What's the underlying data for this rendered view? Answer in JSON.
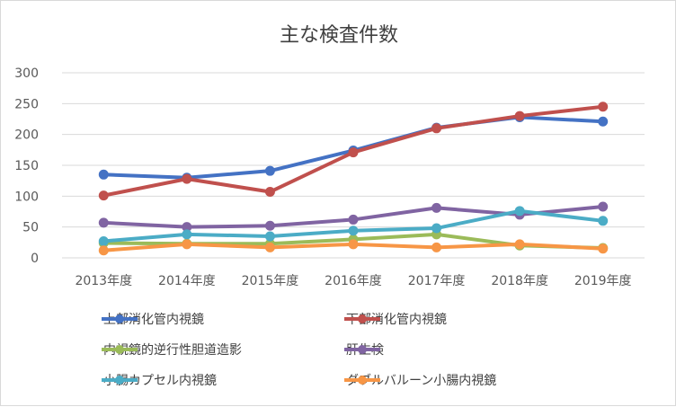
{
  "chart_data": {
    "type": "line",
    "title": "主な検査件数",
    "categories": [
      "2013年度",
      "2014年度",
      "2015年度",
      "2016年度",
      "2017年度",
      "2018年度",
      "2019年度"
    ],
    "ylim": [
      0,
      300
    ],
    "yticks": [
      0,
      50,
      100,
      150,
      200,
      250,
      300
    ],
    "grid": true,
    "legend_position": "bottom",
    "series": [
      {
        "name": "上部消化管内視鏡",
        "color": "#4472c4",
        "values": [
          135,
          130,
          141,
          174,
          211,
          228,
          221
        ]
      },
      {
        "name": "下部消化管内視鏡",
        "color": "#c0504d",
        "values": [
          101,
          128,
          107,
          171,
          210,
          230,
          245
        ]
      },
      {
        "name": "内視鏡的逆行性胆道造影",
        "color": "#9bbb59",
        "values": [
          24,
          23,
          23,
          30,
          38,
          20,
          16
        ]
      },
      {
        "name": "肝生検",
        "color": "#8064a2",
        "values": [
          57,
          50,
          52,
          62,
          81,
          70,
          83
        ]
      },
      {
        "name": "小腸カプセル内視鏡",
        "color": "#4bacc6",
        "values": [
          27,
          38,
          35,
          44,
          48,
          76,
          60
        ]
      },
      {
        "name": "ダブルバルーン小腸内視鏡",
        "color": "#f79646",
        "values": [
          12,
          22,
          17,
          22,
          17,
          22,
          15
        ]
      }
    ]
  }
}
